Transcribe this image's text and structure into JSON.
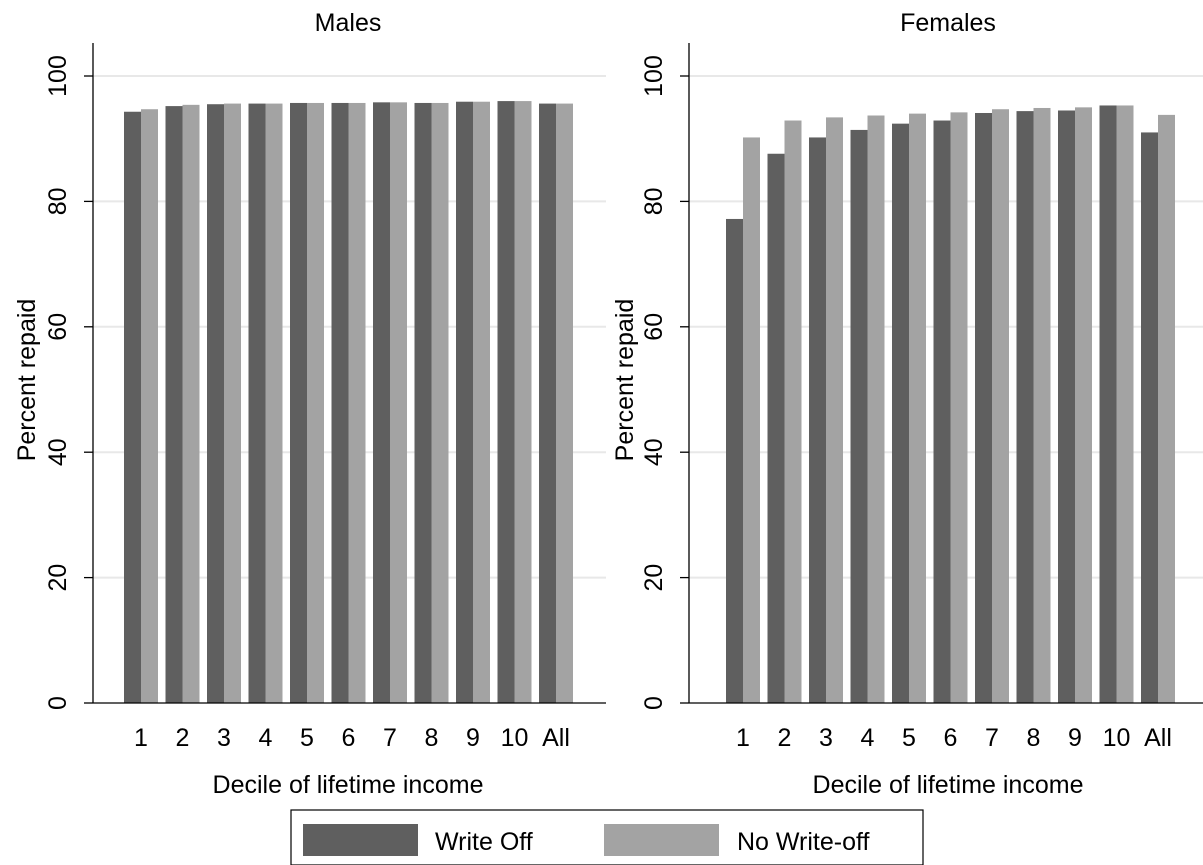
{
  "chart_data": [
    {
      "type": "bar",
      "title": "Males",
      "xlabel": "Decile of lifetime income",
      "ylabel": "Percent repaid",
      "ylim": [
        0,
        100
      ],
      "yticks": [
        0,
        20,
        40,
        60,
        80,
        100
      ],
      "grid": true,
      "categories": [
        "1",
        "2",
        "3",
        "4",
        "5",
        "6",
        "7",
        "8",
        "9",
        "10",
        "All"
      ],
      "series": [
        {
          "name": "Write Off",
          "values": [
            94.3,
            95.2,
            95.5,
            95.6,
            95.7,
            95.7,
            95.8,
            95.7,
            95.9,
            96.0,
            95.6
          ]
        },
        {
          "name": "No Write-off",
          "values": [
            94.7,
            95.4,
            95.6,
            95.6,
            95.7,
            95.7,
            95.8,
            95.7,
            95.9,
            96.0,
            95.6
          ]
        }
      ]
    },
    {
      "type": "bar",
      "title": "Females",
      "xlabel": "Decile of lifetime income",
      "ylabel": "Percent repaid",
      "ylim": [
        0,
        100
      ],
      "yticks": [
        0,
        20,
        40,
        60,
        80,
        100
      ],
      "grid": true,
      "categories": [
        "1",
        "2",
        "3",
        "4",
        "5",
        "6",
        "7",
        "8",
        "9",
        "10",
        "All"
      ],
      "series": [
        {
          "name": "Write Off",
          "values": [
            77.2,
            87.6,
            90.2,
            91.4,
            92.4,
            92.9,
            94.1,
            94.4,
            94.5,
            95.3,
            91.0
          ]
        },
        {
          "name": "No Write-off",
          "values": [
            90.2,
            92.9,
            93.4,
            93.7,
            94.0,
            94.2,
            94.7,
            94.9,
            95.0,
            95.3,
            93.8
          ]
        }
      ]
    }
  ],
  "legend": {
    "placement": "bottom",
    "items": [
      {
        "label": "Write Off",
        "color": "#5f5f5f"
      },
      {
        "label": "No Write-off",
        "color": "#a3a3a3"
      }
    ]
  },
  "colors": {
    "write_off": "#5f5f5f",
    "no_write_off": "#a3a3a3",
    "grid": "#e8e8e8",
    "axis": "#000000"
  }
}
